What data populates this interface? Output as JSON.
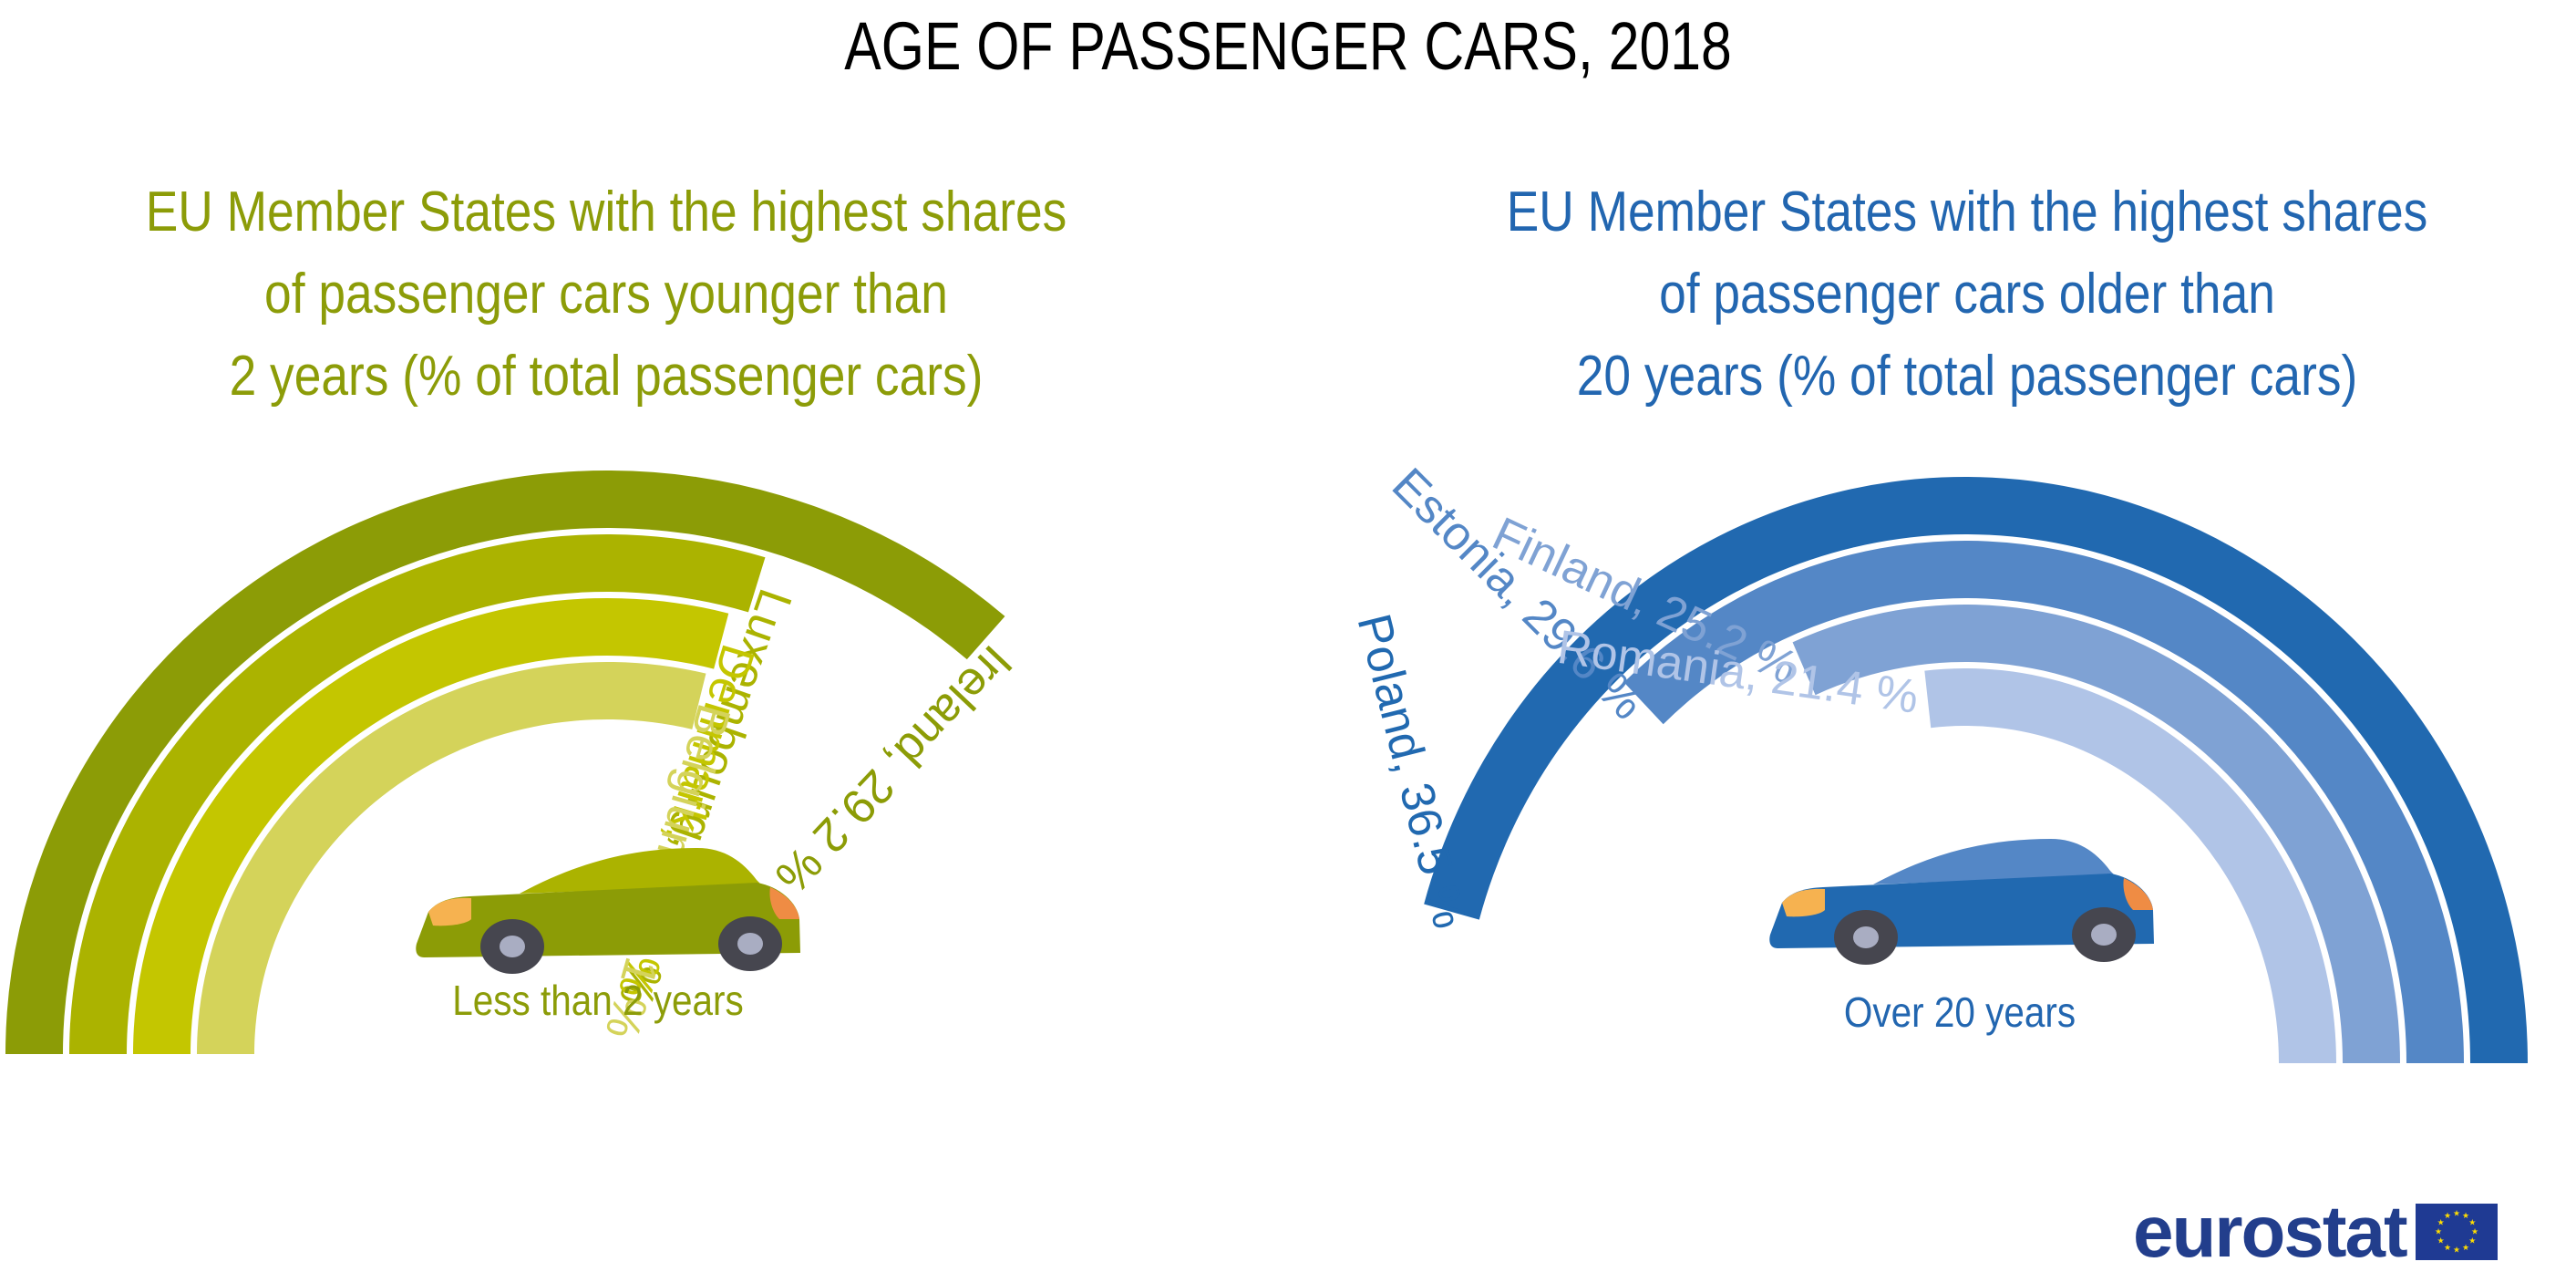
{
  "title": "AGE OF PASSENGER CARS, 2018",
  "chart_data": [
    {
      "type": "radial-bar",
      "title": "EU Member States with the highest shares of passenger cars younger than 2 years (% of total passenger cars)",
      "title_lines": [
        "EU Member States with the highest shares",
        "of passenger cars younger than",
        "2 years (% of total passenger cars)"
      ],
      "caption": "Less than 2 years",
      "unit": "%",
      "categories": [
        "Ireland",
        "Luxembourg",
        "Denmark",
        "Belgium"
      ],
      "values": [
        29.2,
        23.8,
        23.3,
        23.1
      ],
      "labels": [
        "Ireland, 29.2 %",
        "Luxembourg, 23.8 %",
        "Denmark, 23.3 %",
        "Belgium, 23.1 %"
      ],
      "colors": [
        "#8c9c06",
        "#abb300",
        "#c4c600",
        "#d4d35a"
      ],
      "text_color": "#8c9c08",
      "direction": "from-left-clockwise"
    },
    {
      "type": "radial-bar",
      "title": "EU Member States with the highest shares of passenger cars older than 20 years (% of total passenger cars)",
      "title_lines": [
        "EU Member States with the highest shares",
        "of passenger cars older than",
        "20 years (% of total passenger cars)"
      ],
      "caption": "Over 20 years",
      "unit": "%",
      "categories": [
        "Poland",
        "Estonia",
        "Finland",
        "Romania"
      ],
      "values": [
        36.5,
        29.6,
        25.2,
        21.4
      ],
      "labels": [
        "Poland, 36.5 %",
        "Estonia, 29.6 %",
        "Finland, 25.2 %",
        "Romania, 21.4 %"
      ],
      "colors": [
        "#2169b0",
        "#5487c6",
        "#7fa2d4",
        "#b0c4e7"
      ],
      "text_color": "#2266b0",
      "direction": "from-right-counterclockwise"
    }
  ],
  "car_colors": {
    "young": {
      "body": "#8c9c06",
      "roof": "#abb300"
    },
    "old": {
      "body": "#2169b0",
      "roof": "#5487c6"
    },
    "front_light": "#f6b250",
    "rear_light": "#ef8c44",
    "tire": "#46464f",
    "hub": "#a9adc2"
  },
  "logo": {
    "text": "eurostat",
    "flag_color": "#1f3a93",
    "star_color": "#ffdd00"
  }
}
